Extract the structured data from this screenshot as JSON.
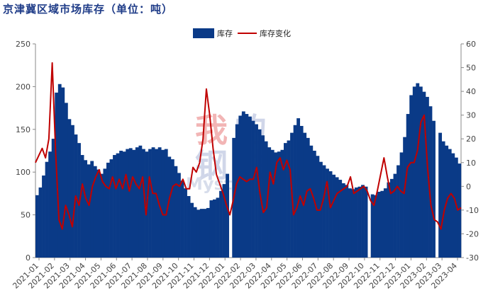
{
  "title": "京津冀区域市场库存（单位：吨）",
  "watermark": {
    "chars": [
      "我",
      "的",
      "钢",
      "铁"
    ],
    "latin": "Mysteel.com"
  },
  "chart_data": {
    "type": "bar+line",
    "title": "京津冀区域市场库存（单位：吨）",
    "y_left": {
      "range": [
        0,
        250
      ],
      "ticks": [
        "0",
        "50",
        "100",
        "150",
        "200",
        "250"
      ]
    },
    "y_right": {
      "range": [
        -30,
        60
      ],
      "ticks": [
        "-30",
        "-20",
        "-10",
        "0",
        "10",
        "20",
        "30",
        "40",
        "50",
        "60"
      ]
    },
    "x_ticks": [
      "2021-01",
      "2021-02",
      "2021-03",
      "2021-04",
      "2021-05",
      "2021-06",
      "2021-07",
      "2021-08",
      "2021-09",
      "2021-10",
      "2021-11",
      "2021-12",
      "2022-01",
      "2022-02",
      "2022-03",
      "2022-04",
      "2022-05",
      "2022-06",
      "2022-07",
      "2022-08",
      "2022-09",
      "2022-10",
      "2022-11",
      "2022-12",
      "2023-01",
      "2023-02",
      "2023-03",
      "2023-04"
    ],
    "legend": {
      "position": "top-center",
      "entries": [
        "库存",
        "库存变化"
      ]
    },
    "series": [
      {
        "name": "库存",
        "type": "bar",
        "axis": "left",
        "color": "#0a3a87",
        "values": [
          73,
          82,
          96,
          112,
          124,
          139,
          193,
          203,
          199,
          181,
          162,
          155,
          144,
          134,
          120,
          114,
          109,
          113,
          107,
          103,
          98,
          104,
          111,
          115,
          120,
          122,
          125,
          124,
          127,
          128,
          126,
          129,
          131,
          127,
          124,
          127,
          129,
          127,
          129,
          126,
          127,
          118,
          115,
          107,
          99,
          90,
          81,
          72,
          64,
          59,
          56,
          57,
          57,
          58,
          67,
          68,
          70,
          78,
          86,
          98,
          null,
          140,
          156,
          166,
          171,
          168,
          165,
          160,
          156,
          150,
          143,
          136,
          129,
          126,
          123,
          124,
          126,
          134,
          137,
          146,
          155,
          163,
          154,
          146,
          140,
          131,
          125,
          119,
          112,
          108,
          104,
          101,
          97,
          94,
          91,
          87,
          85,
          81,
          80,
          82,
          83,
          85,
          83,
          null,
          74,
          73,
          77,
          78,
          81,
          88,
          92,
          98,
          108,
          123,
          141,
          168,
          190,
          200,
          204,
          200,
          194,
          188,
          177,
          160,
          null,
          146,
          136,
          131,
          127,
          122,
          117,
          110
        ]
      },
      {
        "name": "库存变化",
        "type": "line",
        "axis": "right",
        "color": "#c00000",
        "values": [
          10,
          13,
          16,
          12,
          20,
          52,
          15,
          -14,
          -18,
          -8,
          -12,
          -17,
          -4,
          -8,
          1,
          -5,
          -8,
          0,
          4,
          7,
          2,
          0,
          -1,
          4,
          -1,
          3,
          -1,
          5,
          -2,
          4,
          1,
          -1,
          4,
          -12,
          4,
          -3,
          -3,
          -8,
          -12,
          -12,
          -5,
          0,
          1,
          0,
          3,
          -1,
          -1,
          8,
          6,
          10,
          20,
          41,
          30,
          16,
          5,
          1,
          -3,
          -8,
          -12,
          -6,
          1,
          4,
          3,
          2,
          3,
          3,
          8,
          -3,
          -11,
          -9,
          6,
          1,
          10,
          12,
          7,
          11,
          7,
          -12,
          -9,
          -4,
          -8,
          -2,
          -1,
          -5,
          -10,
          -10,
          -5,
          2,
          -9,
          -6,
          -3,
          -2,
          -1,
          0,
          4,
          -3,
          -2,
          -1,
          0,
          -2,
          -6,
          -8,
          -2,
          5,
          12,
          4,
          -3,
          -2,
          0,
          -2,
          -3,
          8,
          10,
          10,
          15,
          27,
          30,
          8,
          -8,
          -14,
          -15,
          -18,
          -10,
          -5,
          -3,
          -5,
          -10,
          -9
        ]
      }
    ]
  }
}
